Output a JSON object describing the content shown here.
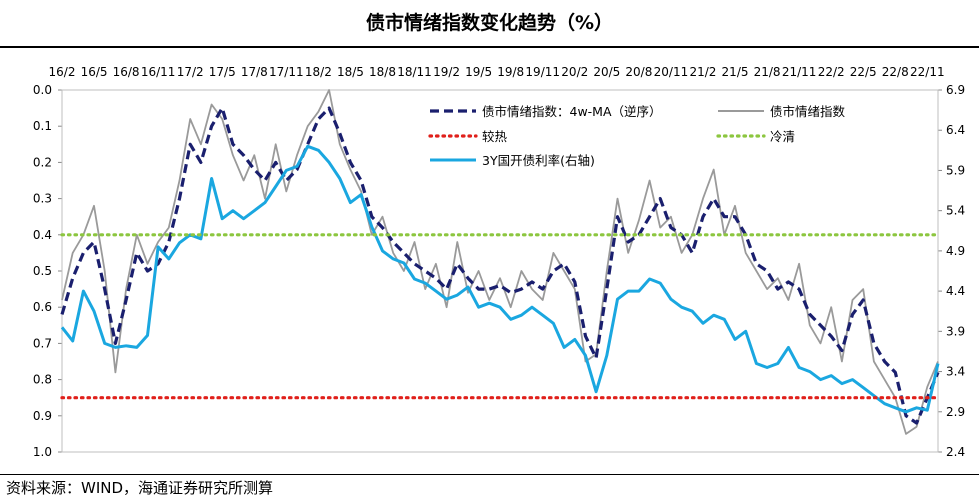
{
  "page": {
    "title": "债市情绪指数变化趋势（%）",
    "source": "资料来源：WIND，海通证券研究所测算"
  },
  "chart_data": {
    "type": "line",
    "x_tick_labels": [
      "16/2",
      "16/5",
      "16/8",
      "16/11",
      "17/2",
      "17/5",
      "17/8",
      "17/11",
      "18/2",
      "18/5",
      "18/8",
      "18/11",
      "19/2",
      "19/5",
      "19/8",
      "19/11",
      "20/2",
      "20/5",
      "20/8",
      "20/11",
      "21/2",
      "21/5",
      "21/8",
      "21/11",
      "22/2",
      "22/5",
      "22/8",
      "22/11"
    ],
    "x_start": "16/2",
    "x_end": "22/12",
    "y_left": {
      "min": 0.0,
      "max": 1.0,
      "reversed": true,
      "ticks": [
        "0.0",
        "0.1",
        "0.2",
        "0.3",
        "0.4",
        "0.5",
        "0.6",
        "0.7",
        "0.8",
        "0.9",
        "1.0"
      ]
    },
    "y_right": {
      "min": 2.4,
      "max": 6.9,
      "ticks": [
        "6.9",
        "6.4",
        "5.9",
        "5.4",
        "4.9",
        "4.4",
        "3.9",
        "3.4",
        "2.9",
        "2.4"
      ]
    },
    "grid": false,
    "legend_position": "top",
    "series": [
      {
        "name": "债市情绪指数：4w-MA（逆序）",
        "axis": "left",
        "color": "#1a1f6e",
        "style": "dashed",
        "x": [
          "16/2",
          "16/3",
          "16/4",
          "16/5",
          "16/6",
          "16/7",
          "16/8",
          "16/9",
          "16/10",
          "16/11",
          "16/12",
          "17/1",
          "17/2",
          "17/3",
          "17/4",
          "17/5",
          "17/6",
          "17/7",
          "17/8",
          "17/9",
          "17/10",
          "17/11",
          "17/12",
          "18/1",
          "18/2",
          "18/3",
          "18/4",
          "18/5",
          "18/6",
          "18/7",
          "18/8",
          "18/9",
          "18/10",
          "18/11",
          "18/12",
          "19/1",
          "19/2",
          "19/3",
          "19/4",
          "19/5",
          "19/6",
          "19/7",
          "19/8",
          "19/9",
          "19/10",
          "19/11",
          "19/12",
          "20/1",
          "20/2",
          "20/3",
          "20/4",
          "20/5",
          "20/6",
          "20/7",
          "20/8",
          "20/9",
          "20/10",
          "20/11",
          "20/12",
          "21/1",
          "21/2",
          "21/3",
          "21/4",
          "21/5",
          "21/6",
          "21/7",
          "21/8",
          "21/9",
          "21/10",
          "21/11",
          "21/12",
          "22/1",
          "22/2",
          "22/3",
          "22/4",
          "22/5",
          "22/6",
          "22/7",
          "22/8",
          "22/9",
          "22/10",
          "22/11",
          "22/12"
        ],
        "values": [
          0.62,
          0.52,
          0.45,
          0.42,
          0.55,
          0.7,
          0.58,
          0.45,
          0.5,
          0.48,
          0.42,
          0.3,
          0.15,
          0.2,
          0.1,
          0.05,
          0.15,
          0.18,
          0.22,
          0.25,
          0.2,
          0.25,
          0.22,
          0.15,
          0.08,
          0.05,
          0.12,
          0.2,
          0.25,
          0.35,
          0.38,
          0.42,
          0.45,
          0.48,
          0.5,
          0.52,
          0.55,
          0.48,
          0.52,
          0.55,
          0.55,
          0.54,
          0.56,
          0.55,
          0.53,
          0.55,
          0.5,
          0.48,
          0.53,
          0.68,
          0.74,
          0.55,
          0.35,
          0.42,
          0.4,
          0.35,
          0.3,
          0.38,
          0.4,
          0.45,
          0.35,
          0.3,
          0.35,
          0.35,
          0.4,
          0.48,
          0.5,
          0.55,
          0.53,
          0.55,
          0.62,
          0.65,
          0.68,
          0.72,
          0.62,
          0.58,
          0.7,
          0.75,
          0.78,
          0.9,
          0.92,
          0.85,
          0.78
        ]
      },
      {
        "name": "债市情绪指数",
        "axis": "left",
        "color": "#9a9a9a",
        "style": "solid",
        "x": [
          "16/2",
          "16/3",
          "16/4",
          "16/5",
          "16/6",
          "16/7",
          "16/8",
          "16/9",
          "16/10",
          "16/11",
          "16/12",
          "17/1",
          "17/2",
          "17/3",
          "17/4",
          "17/5",
          "17/6",
          "17/7",
          "17/8",
          "17/9",
          "17/10",
          "17/11",
          "17/12",
          "18/1",
          "18/2",
          "18/3",
          "18/4",
          "18/5",
          "18/6",
          "18/7",
          "18/8",
          "18/9",
          "18/10",
          "18/11",
          "18/12",
          "19/1",
          "19/2",
          "19/3",
          "19/4",
          "19/5",
          "19/6",
          "19/7",
          "19/8",
          "19/9",
          "19/10",
          "19/11",
          "19/12",
          "20/1",
          "20/2",
          "20/3",
          "20/4",
          "20/5",
          "20/6",
          "20/7",
          "20/8",
          "20/9",
          "20/10",
          "20/11",
          "20/12",
          "21/1",
          "21/2",
          "21/3",
          "21/4",
          "21/5",
          "21/6",
          "21/7",
          "21/8",
          "21/9",
          "21/10",
          "21/11",
          "21/12",
          "22/1",
          "22/2",
          "22/3",
          "22/4",
          "22/5",
          "22/6",
          "22/7",
          "22/8",
          "22/9",
          "22/10",
          "22/11",
          "22/12"
        ],
        "values": [
          0.58,
          0.45,
          0.4,
          0.32,
          0.5,
          0.78,
          0.55,
          0.4,
          0.48,
          0.42,
          0.38,
          0.25,
          0.08,
          0.15,
          0.04,
          0.08,
          0.18,
          0.25,
          0.18,
          0.3,
          0.15,
          0.28,
          0.18,
          0.1,
          0.06,
          0.0,
          0.15,
          0.22,
          0.28,
          0.4,
          0.35,
          0.45,
          0.5,
          0.42,
          0.55,
          0.48,
          0.6,
          0.42,
          0.56,
          0.5,
          0.58,
          0.52,
          0.6,
          0.5,
          0.55,
          0.58,
          0.45,
          0.5,
          0.55,
          0.75,
          0.73,
          0.5,
          0.3,
          0.45,
          0.36,
          0.25,
          0.38,
          0.35,
          0.45,
          0.4,
          0.3,
          0.22,
          0.4,
          0.32,
          0.45,
          0.5,
          0.55,
          0.52,
          0.58,
          0.48,
          0.65,
          0.7,
          0.6,
          0.75,
          0.58,
          0.55,
          0.75,
          0.8,
          0.85,
          0.95,
          0.93,
          0.82,
          0.75
        ]
      },
      {
        "name": "较热",
        "axis": "left",
        "color": "#e0201b",
        "style": "dotted",
        "constant": 0.85
      },
      {
        "name": "冷清",
        "axis": "left",
        "color": "#8cc63f",
        "style": "dotted",
        "constant": 0.4
      },
      {
        "name": "3Y国开债利率(右轴)",
        "axis": "right",
        "color": "#1aa7e0",
        "style": "solid",
        "x": [
          "16/2",
          "16/3",
          "16/4",
          "16/5",
          "16/6",
          "16/7",
          "16/8",
          "16/9",
          "16/10",
          "16/11",
          "16/12",
          "17/1",
          "17/2",
          "17/3",
          "17/4",
          "17/5",
          "17/6",
          "17/7",
          "17/8",
          "17/9",
          "17/10",
          "17/11",
          "17/12",
          "18/1",
          "18/2",
          "18/3",
          "18/4",
          "18/5",
          "18/6",
          "18/7",
          "18/8",
          "18/9",
          "18/10",
          "18/11",
          "18/12",
          "19/1",
          "19/2",
          "19/3",
          "19/4",
          "19/5",
          "19/6",
          "19/7",
          "19/8",
          "19/9",
          "19/10",
          "19/11",
          "19/12",
          "20/1",
          "20/2",
          "20/3",
          "20/4",
          "20/5",
          "20/6",
          "20/7",
          "20/8",
          "20/9",
          "20/10",
          "20/11",
          "20/12",
          "21/1",
          "21/2",
          "21/3",
          "21/4",
          "21/5",
          "21/6",
          "21/7",
          "21/8",
          "21/9",
          "21/10",
          "21/11",
          "21/12",
          "22/1",
          "22/2",
          "22/3",
          "22/4",
          "22/5",
          "22/6",
          "22/7",
          "22/8",
          "22/9",
          "22/10",
          "22/11",
          "22/12"
        ],
        "values": [
          3.95,
          3.78,
          4.4,
          4.15,
          3.75,
          3.7,
          3.72,
          3.7,
          3.85,
          4.95,
          4.8,
          5.0,
          5.1,
          5.05,
          5.8,
          5.3,
          5.4,
          5.3,
          5.4,
          5.5,
          5.7,
          5.9,
          5.95,
          6.2,
          6.15,
          6.0,
          5.8,
          5.5,
          5.6,
          5.2,
          4.9,
          4.8,
          4.75,
          4.55,
          4.5,
          4.4,
          4.3,
          4.35,
          4.45,
          4.2,
          4.25,
          4.2,
          4.05,
          4.1,
          4.2,
          4.1,
          4.0,
          3.7,
          3.8,
          3.6,
          3.15,
          3.6,
          4.3,
          4.4,
          4.4,
          4.55,
          4.5,
          4.3,
          4.2,
          4.15,
          4.0,
          4.1,
          4.05,
          3.8,
          3.9,
          3.5,
          3.45,
          3.5,
          3.7,
          3.45,
          3.4,
          3.3,
          3.35,
          3.25,
          3.3,
          3.2,
          3.1,
          3.0,
          2.95,
          2.9,
          2.95,
          2.92,
          3.5
        ]
      }
    ]
  }
}
